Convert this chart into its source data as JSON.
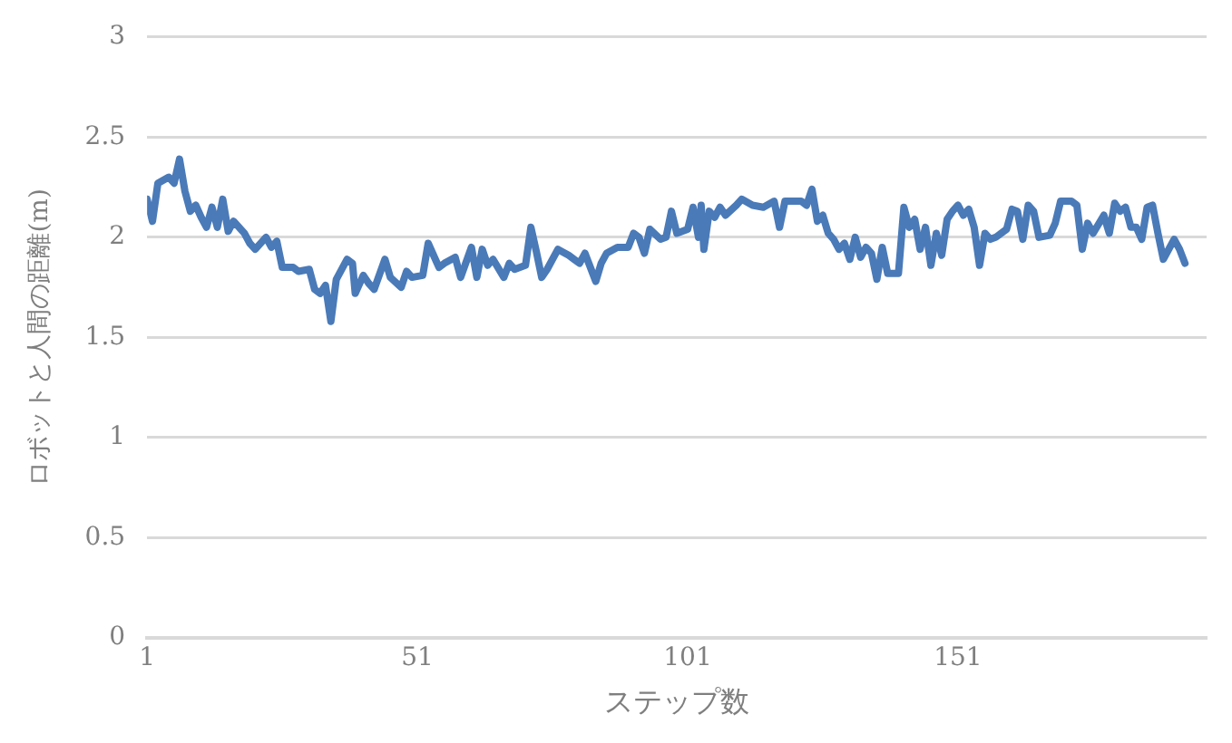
{
  "chart_data": {
    "type": "line",
    "xlabel": "ステップ数",
    "ylabel": "ロボットと人間の距離(m)",
    "x": [
      1,
      2,
      3,
      5,
      6,
      7,
      8,
      9,
      10,
      11,
      12,
      13,
      14,
      15,
      16,
      17,
      19,
      20,
      21,
      23,
      24,
      25,
      26,
      28,
      29,
      31,
      32,
      33,
      34,
      35,
      36,
      38,
      39,
      39.5,
      41,
      42,
      43,
      45,
      46,
      48,
      49,
      50,
      52,
      53,
      55,
      56,
      58,
      59,
      61,
      62,
      63,
      64,
      65,
      67,
      68,
      69,
      71,
      72,
      73,
      74,
      75,
      77,
      79,
      80,
      81,
      82,
      84,
      85,
      86,
      88,
      90,
      91,
      92,
      93,
      94,
      96,
      97,
      98,
      99,
      101,
      102,
      103,
      103.5,
      104,
      105,
      106,
      107,
      108,
      110,
      111,
      113,
      115,
      117,
      118,
      119,
      122,
      123,
      124,
      125,
      126,
      127,
      128,
      129,
      130,
      131,
      132,
      133,
      134,
      135,
      136,
      137,
      138,
      140,
      141,
      142,
      143,
      144,
      145,
      146,
      147,
      148,
      149,
      150,
      151,
      152,
      153,
      154,
      155,
      156,
      157,
      158,
      160,
      161,
      162,
      163,
      164,
      165,
      166,
      168,
      169,
      170,
      172,
      173,
      174,
      175,
      176,
      178,
      179,
      180,
      181,
      182,
      183,
      184,
      185,
      186,
      187,
      188,
      189,
      191,
      192,
      193
    ],
    "series": [
      {
        "color": "#4a7ab8",
        "values": [
          2.19,
          2.08,
          2.27,
          2.3,
          2.27,
          2.39,
          2.23,
          2.13,
          2.16,
          2.1,
          2.05,
          2.15,
          2.05,
          2.19,
          2.03,
          2.08,
          2.02,
          1.97,
          1.94,
          2.0,
          1.95,
          1.98,
          1.85,
          1.85,
          1.83,
          1.84,
          1.74,
          1.72,
          1.76,
          1.58,
          1.79,
          1.89,
          1.87,
          1.72,
          1.81,
          1.77,
          1.74,
          1.89,
          1.8,
          1.75,
          1.83,
          1.8,
          1.81,
          1.97,
          1.85,
          1.87,
          1.9,
          1.8,
          1.95,
          1.8,
          1.94,
          1.86,
          1.89,
          1.8,
          1.87,
          1.84,
          1.86,
          2.05,
          1.93,
          1.8,
          1.84,
          1.94,
          1.91,
          1.89,
          1.87,
          1.92,
          1.78,
          1.87,
          1.92,
          1.95,
          1.95,
          2.02,
          2.0,
          1.92,
          2.04,
          1.99,
          2.0,
          2.13,
          2.02,
          2.04,
          2.15,
          2.0,
          2.16,
          1.94,
          2.13,
          2.1,
          2.15,
          2.11,
          2.16,
          2.19,
          2.16,
          2.15,
          2.18,
          2.05,
          2.18,
          2.18,
          2.16,
          2.24,
          2.08,
          2.11,
          2.02,
          1.99,
          1.94,
          1.97,
          1.89,
          2.0,
          1.9,
          1.95,
          1.92,
          1.79,
          1.95,
          1.82,
          1.82,
          2.15,
          2.05,
          2.09,
          1.94,
          2.05,
          1.86,
          2.02,
          1.91,
          2.09,
          2.13,
          2.16,
          2.11,
          2.14,
          2.05,
          1.86,
          2.02,
          1.99,
          2.0,
          2.04,
          2.14,
          2.13,
          1.99,
          2.16,
          2.13,
          2.0,
          2.01,
          2.07,
          2.18,
          2.18,
          2.16,
          1.94,
          2.07,
          2.02,
          2.11,
          2.02,
          2.17,
          2.13,
          2.15,
          2.05,
          2.05,
          1.99,
          2.15,
          2.16,
          2.02,
          1.89,
          1.99,
          1.94,
          1.87
        ]
      }
    ],
    "xlim": [
      1,
      197
    ],
    "xticks": [
      1,
      51,
      101,
      151
    ],
    "ylim": [
      0,
      3
    ],
    "yticks": [
      0,
      0.5,
      1,
      1.5,
      2,
      2.5,
      3
    ],
    "grid": "y",
    "legend": false,
    "marker": "none",
    "line_style": "solid"
  }
}
